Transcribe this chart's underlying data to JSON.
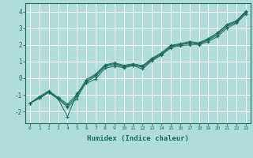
{
  "background_color": "#b0ddd8",
  "grid_color": "#ffffff",
  "line_color": "#1a6b5a",
  "marker": "+",
  "xlabel": "Humidex (Indice chaleur)",
  "xlim": [
    -0.5,
    23.5
  ],
  "ylim": [
    -2.7,
    4.5
  ],
  "yticks": [
    -2,
    -1,
    0,
    1,
    2,
    3,
    4
  ],
  "xticks": [
    0,
    1,
    2,
    3,
    4,
    5,
    6,
    7,
    8,
    9,
    10,
    11,
    12,
    13,
    14,
    15,
    16,
    17,
    18,
    19,
    20,
    21,
    22,
    23
  ],
  "series": [
    {
      "x": [
        0,
        1,
        2,
        3,
        4,
        5,
        6,
        7,
        8,
        9,
        10,
        11,
        12,
        13,
        14,
        15,
        16,
        17,
        18,
        19,
        20,
        21,
        22,
        23
      ],
      "y": [
        -1.5,
        -1.2,
        -0.85,
        -1.25,
        -2.3,
        -0.9,
        -0.3,
        -0.05,
        0.6,
        0.72,
        0.63,
        0.75,
        0.55,
        1.05,
        1.38,
        1.82,
        1.95,
        2.0,
        2.0,
        2.2,
        2.5,
        3.0,
        3.3,
        3.85
      ]
    },
    {
      "x": [
        0,
        1,
        2,
        3,
        4,
        5,
        6,
        7,
        8,
        9,
        10,
        11,
        12,
        13,
        14,
        15,
        16,
        17,
        18,
        19,
        20,
        21,
        22,
        23
      ],
      "y": [
        -1.5,
        -1.2,
        -0.85,
        -1.25,
        -1.75,
        -1.22,
        -0.2,
        0.1,
        0.7,
        0.82,
        0.68,
        0.8,
        0.65,
        1.1,
        1.42,
        1.88,
        2.0,
        2.1,
        2.05,
        2.28,
        2.6,
        3.1,
        3.35,
        3.92
      ]
    },
    {
      "x": [
        0,
        1,
        2,
        3,
        4,
        5,
        6,
        7,
        8,
        9,
        10,
        11,
        12,
        13,
        14,
        15,
        16,
        17,
        18,
        19,
        20,
        21,
        22,
        23
      ],
      "y": [
        -1.5,
        -1.15,
        -0.8,
        -1.2,
        -1.65,
        -1.1,
        -0.15,
        0.18,
        0.75,
        0.88,
        0.72,
        0.82,
        0.7,
        1.15,
        1.47,
        1.93,
        2.03,
        2.15,
        2.08,
        2.33,
        2.68,
        3.18,
        3.4,
        3.97
      ]
    },
    {
      "x": [
        0,
        1,
        2,
        3,
        4,
        5,
        6,
        7,
        8,
        9,
        10,
        11,
        12,
        13,
        14,
        15,
        16,
        17,
        18,
        19,
        20,
        21,
        22,
        23
      ],
      "y": [
        -1.5,
        -1.1,
        -0.75,
        -1.15,
        -1.55,
        -0.98,
        -0.08,
        0.25,
        0.8,
        0.93,
        0.77,
        0.87,
        0.75,
        1.2,
        1.52,
        1.97,
        2.07,
        2.2,
        2.12,
        2.38,
        2.73,
        3.23,
        3.45,
        4.02
      ]
    }
  ]
}
